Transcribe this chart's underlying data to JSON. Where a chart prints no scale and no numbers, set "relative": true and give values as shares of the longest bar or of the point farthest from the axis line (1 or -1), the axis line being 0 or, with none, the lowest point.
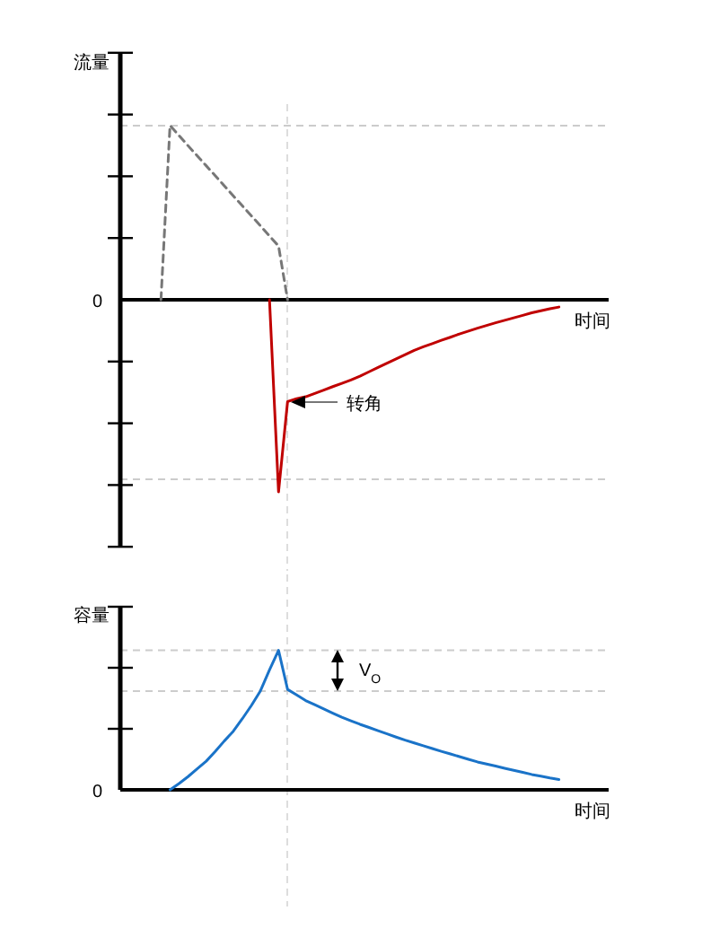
{
  "chart_data": [
    {
      "type": "line",
      "relative": true,
      "ylabel": "流量",
      "xlabel": "时间",
      "categories": [
        null,
        null,
        null,
        null,
        null,
        null,
        null,
        null,
        null,
        null,
        null,
        null,
        null,
        null,
        null,
        null,
        null,
        null,
        null,
        null,
        null,
        null,
        null,
        null,
        null,
        null,
        null,
        null,
        null,
        null,
        null,
        null,
        null,
        null,
        null,
        null,
        null,
        null,
        null,
        null,
        null,
        null,
        null,
        null,
        null,
        null,
        null,
        null,
        null,
        null,
        null,
        null,
        null,
        null
      ],
      "series": [
        {
          "color": "#777777",
          "line_style": "dashed",
          "values": [
            null,
            null,
            null,
            null,
            0,
            0.907,
            0.855,
            0.802,
            0.75,
            0.698,
            0.646,
            0.594,
            0.541,
            0.489,
            0.437,
            0.385,
            0.332,
            0.28,
            0,
            null,
            null,
            null,
            null,
            null,
            null,
            null,
            null,
            null,
            null,
            null,
            null,
            null,
            null,
            null,
            null,
            null,
            null,
            null,
            null,
            null,
            null,
            null,
            null,
            null,
            null,
            null,
            null,
            null,
            null,
            null,
            null,
            null,
            null,
            null
          ]
        },
        {
          "color": "#c00000",
          "line_style": "solid",
          "values": [
            null,
            null,
            null,
            null,
            null,
            null,
            null,
            null,
            null,
            null,
            null,
            null,
            null,
            null,
            null,
            null,
            0,
            -1,
            -0.53,
            -0.515,
            -0.505,
            -0.488,
            -0.47,
            -0.452,
            -0.435,
            -0.418,
            -0.398,
            -0.375,
            -0.352,
            -0.33,
            -0.308,
            -0.286,
            -0.263,
            -0.245,
            -0.228,
            -0.211,
            -0.195,
            -0.178,
            -0.163,
            -0.148,
            -0.134,
            -0.12,
            -0.107,
            -0.094,
            -0.081,
            -0.068,
            -0.057,
            -0.047,
            -0.038,
            null,
            null,
            null,
            null,
            null
          ]
        }
      ],
      "ref_lines": [
        {
          "axis": "y",
          "value": 0.907,
          "color": "#cccccc",
          "line_style": "dashed"
        },
        {
          "axis": "y",
          "value": -0.935,
          "color": "#cccccc",
          "line_style": "dashed"
        }
      ],
      "annotations": [
        "转角",
        "0"
      ]
    },
    {
      "type": "line",
      "relative": true,
      "ylabel": "容量",
      "xlabel": "时间",
      "categories": [
        null,
        null,
        null,
        null,
        null,
        null,
        null,
        null,
        null,
        null,
        null,
        null,
        null,
        null,
        null,
        null,
        null,
        null,
        null,
        null,
        null,
        null,
        null,
        null,
        null,
        null,
        null,
        null,
        null,
        null,
        null,
        null,
        null,
        null,
        null,
        null,
        null,
        null,
        null,
        null,
        null,
        null,
        null,
        null,
        null,
        null,
        null,
        null,
        null,
        null,
        null,
        null,
        null,
        null
      ],
      "series": [
        {
          "color": "#1a73c8",
          "line_style": "solid",
          "values": [
            null,
            null,
            null,
            null,
            null,
            0,
            0.045,
            0.095,
            0.15,
            0.205,
            0.275,
            0.35,
            0.42,
            0.51,
            0.605,
            0.71,
            0.86,
            1,
            0.72,
            0.68,
            0.64,
            0.61,
            0.58,
            0.55,
            0.52,
            0.495,
            0.47,
            0.447,
            0.424,
            0.401,
            0.378,
            0.356,
            0.336,
            0.316,
            0.296,
            0.276,
            0.257,
            0.238,
            0.219,
            0.2,
            0.185,
            0.17,
            0.155,
            0.14,
            0.125,
            0.11,
            0.098,
            0.085,
            0.074,
            null,
            null,
            null,
            null,
            null
          ]
        }
      ],
      "ref_lines": [
        {
          "axis": "y",
          "value": 1,
          "color": "#cccccc",
          "line_style": "dashed"
        },
        {
          "axis": "y",
          "value": 0.708,
          "color": "#cccccc",
          "line_style": "dashed"
        }
      ],
      "annotations": [
        "V$_{O}$",
        "0"
      ]
    }
  ]
}
